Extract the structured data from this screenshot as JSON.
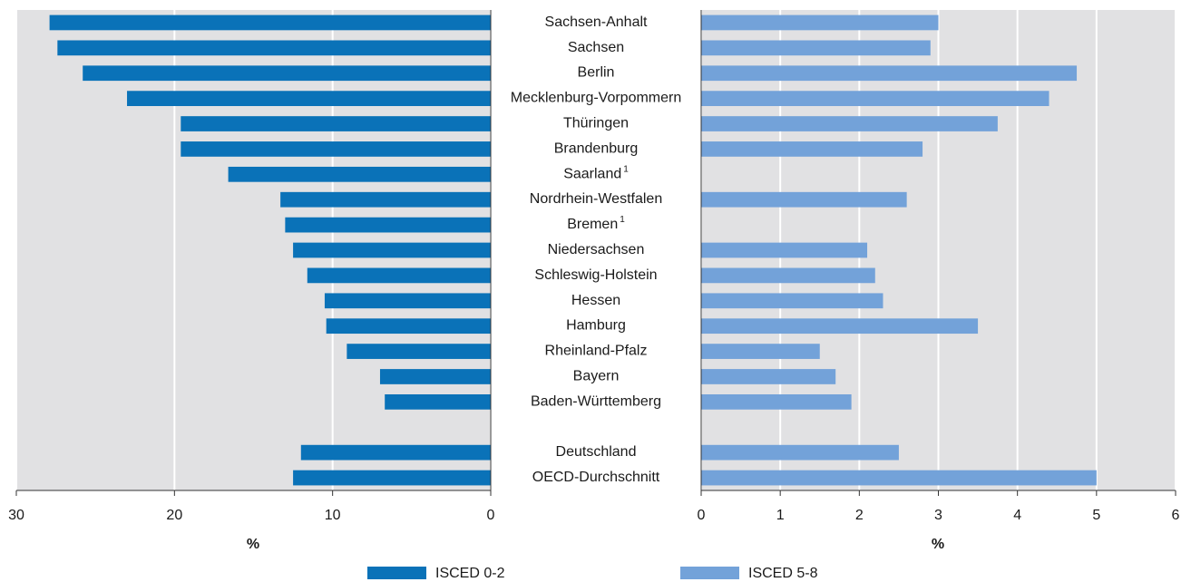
{
  "chart_data": {
    "type": "bar",
    "orientation": "horizontal",
    "categories": [
      "Sachsen-Anhalt",
      "Sachsen",
      "Berlin",
      "Mecklenburg-Vorpommern",
      "Thüringen",
      "Brandenburg",
      "Saarland",
      "Nordrhein-Westfalen",
      "Bremen",
      "Niedersachsen",
      "Schleswig-Holstein",
      "Hessen",
      "Hamburg",
      "Rheinland-Pfalz",
      "Bayern",
      "Baden-Württemberg",
      null,
      "Deutschland",
      "OECD-Durchschnitt"
    ],
    "category_footnotes": [
      null,
      null,
      null,
      null,
      null,
      null,
      "1",
      null,
      "1",
      null,
      null,
      null,
      null,
      null,
      null,
      null,
      null,
      null,
      null
    ],
    "series": [
      {
        "name": "ISCED 0-2",
        "color": "#0a72b8",
        "axis": "x",
        "values": [
          27.9,
          27.4,
          25.8,
          23.0,
          19.6,
          19.6,
          16.6,
          13.3,
          13.0,
          12.5,
          11.6,
          10.5,
          10.4,
          9.1,
          7.0,
          6.7,
          null,
          12.0,
          12.5
        ]
      },
      {
        "name": "ISCED 5-8",
        "color": "#73a2d9",
        "axis": "x2",
        "values": [
          3.0,
          2.9,
          4.75,
          4.4,
          3.75,
          2.8,
          null,
          2.6,
          null,
          2.1,
          2.2,
          2.3,
          3.5,
          1.5,
          1.7,
          1.9,
          null,
          2.5,
          5.0
        ]
      }
    ],
    "xlim": [
      30,
      0
    ],
    "xticks": [
      30,
      20,
      10,
      0
    ],
    "xlabel": "%",
    "x2lim": [
      0,
      6
    ],
    "x2ticks": [
      0,
      1,
      2,
      3,
      4,
      5,
      6
    ],
    "x2label": "%",
    "grid": true,
    "legend": "bottom"
  }
}
